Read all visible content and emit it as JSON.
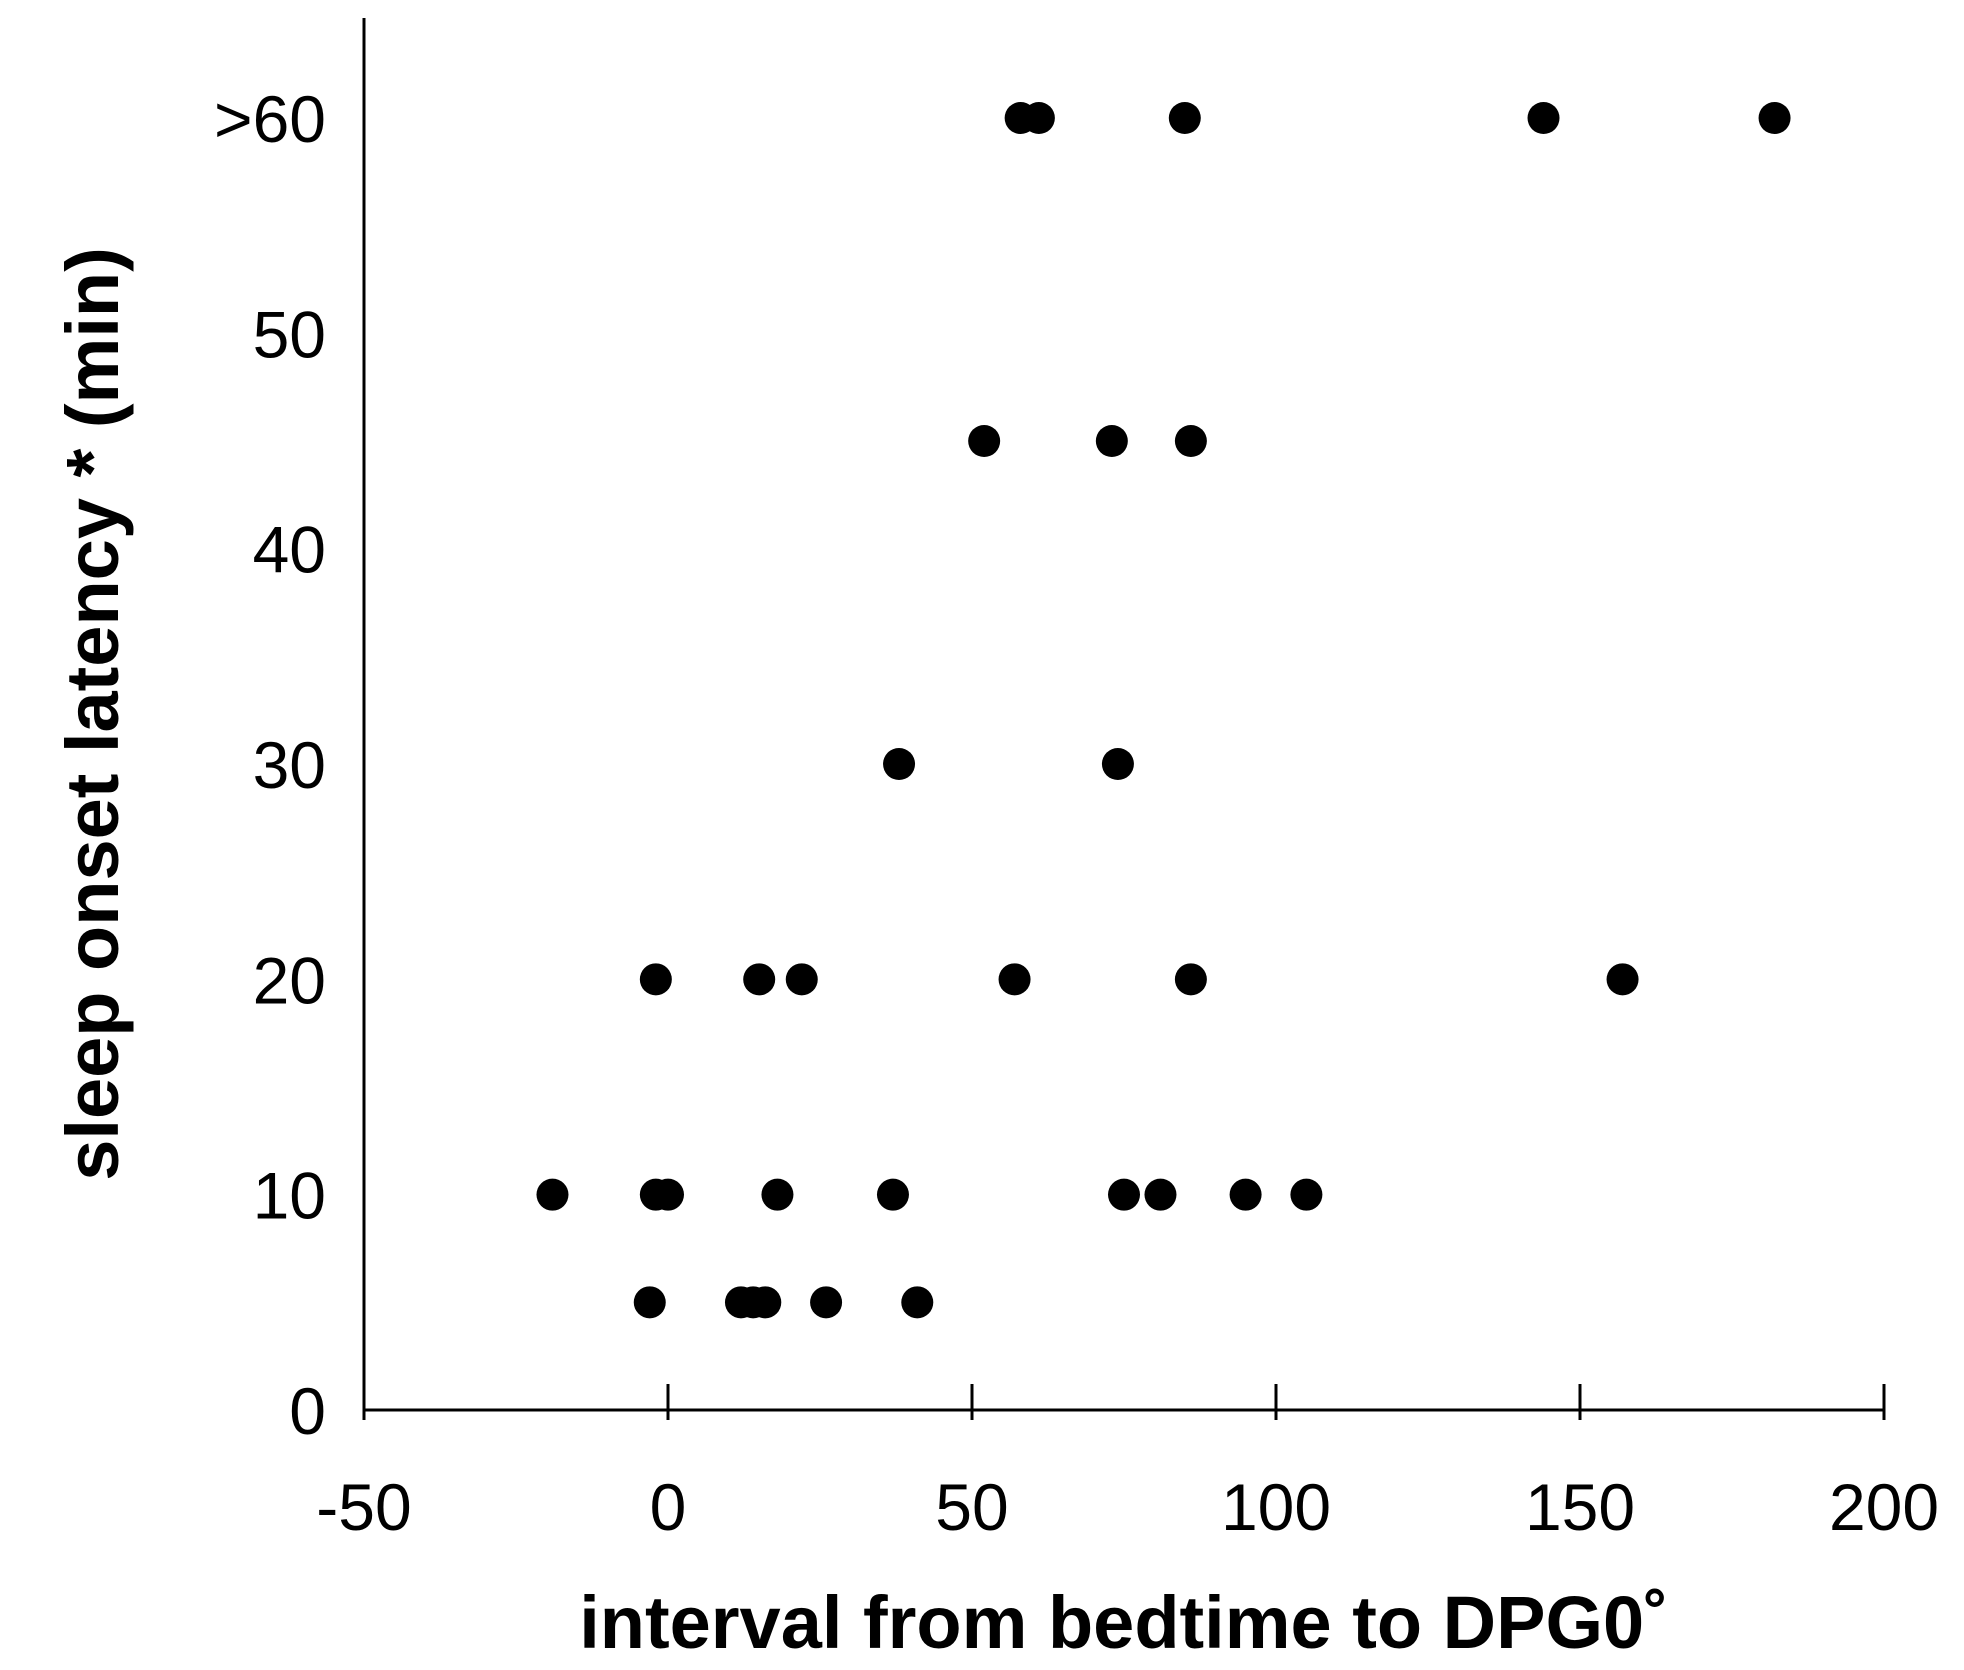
{
  "chart_data": {
    "type": "scatter",
    "xlabel": "interval from bedtime to DPG0˚",
    "ylabel": "sleep onset latency * (min)",
    "xlim": [
      -50,
      200
    ],
    "ylim": [
      0,
      60
    ],
    "x_ticks": [
      {
        "value": -50,
        "label": "-50"
      },
      {
        "value": 0,
        "label": "0"
      },
      {
        "value": 50,
        "label": "50"
      },
      {
        "value": 100,
        "label": "100"
      },
      {
        "value": 150,
        "label": "150"
      },
      {
        "value": 200,
        "label": "200"
      }
    ],
    "y_ticks": [
      {
        "value": 0,
        "label": "0"
      },
      {
        "value": 10,
        "label": "10"
      },
      {
        "value": 20,
        "label": "20"
      },
      {
        "value": 30,
        "label": "30"
      },
      {
        "value": 40,
        "label": "40"
      },
      {
        "value": 50,
        "label": "50"
      },
      {
        "value": 60,
        "label": ">60"
      }
    ],
    "grid": false,
    "marker_color": "#000000",
    "points": [
      {
        "x": 58,
        "y": 60
      },
      {
        "x": 61,
        "y": 60
      },
      {
        "x": 85,
        "y": 60
      },
      {
        "x": 144,
        "y": 60
      },
      {
        "x": 182,
        "y": 60
      },
      {
        "x": 52,
        "y": 45
      },
      {
        "x": 73,
        "y": 45
      },
      {
        "x": 86,
        "y": 45
      },
      {
        "x": 38,
        "y": 30
      },
      {
        "x": 74,
        "y": 30
      },
      {
        "x": -2,
        "y": 20
      },
      {
        "x": 15,
        "y": 20
      },
      {
        "x": 22,
        "y": 20
      },
      {
        "x": 57,
        "y": 20
      },
      {
        "x": 86,
        "y": 20
      },
      {
        "x": 157,
        "y": 20
      },
      {
        "x": -19,
        "y": 10
      },
      {
        "x": -2,
        "y": 10
      },
      {
        "x": 0,
        "y": 10
      },
      {
        "x": 18,
        "y": 10
      },
      {
        "x": 37,
        "y": 10
      },
      {
        "x": 75,
        "y": 10
      },
      {
        "x": 81,
        "y": 10
      },
      {
        "x": 95,
        "y": 10
      },
      {
        "x": 105,
        "y": 10
      },
      {
        "x": -3,
        "y": 5
      },
      {
        "x": 12,
        "y": 5
      },
      {
        "x": 14,
        "y": 5
      },
      {
        "x": 16,
        "y": 5
      },
      {
        "x": 26,
        "y": 5
      },
      {
        "x": 41,
        "y": 5
      }
    ]
  }
}
